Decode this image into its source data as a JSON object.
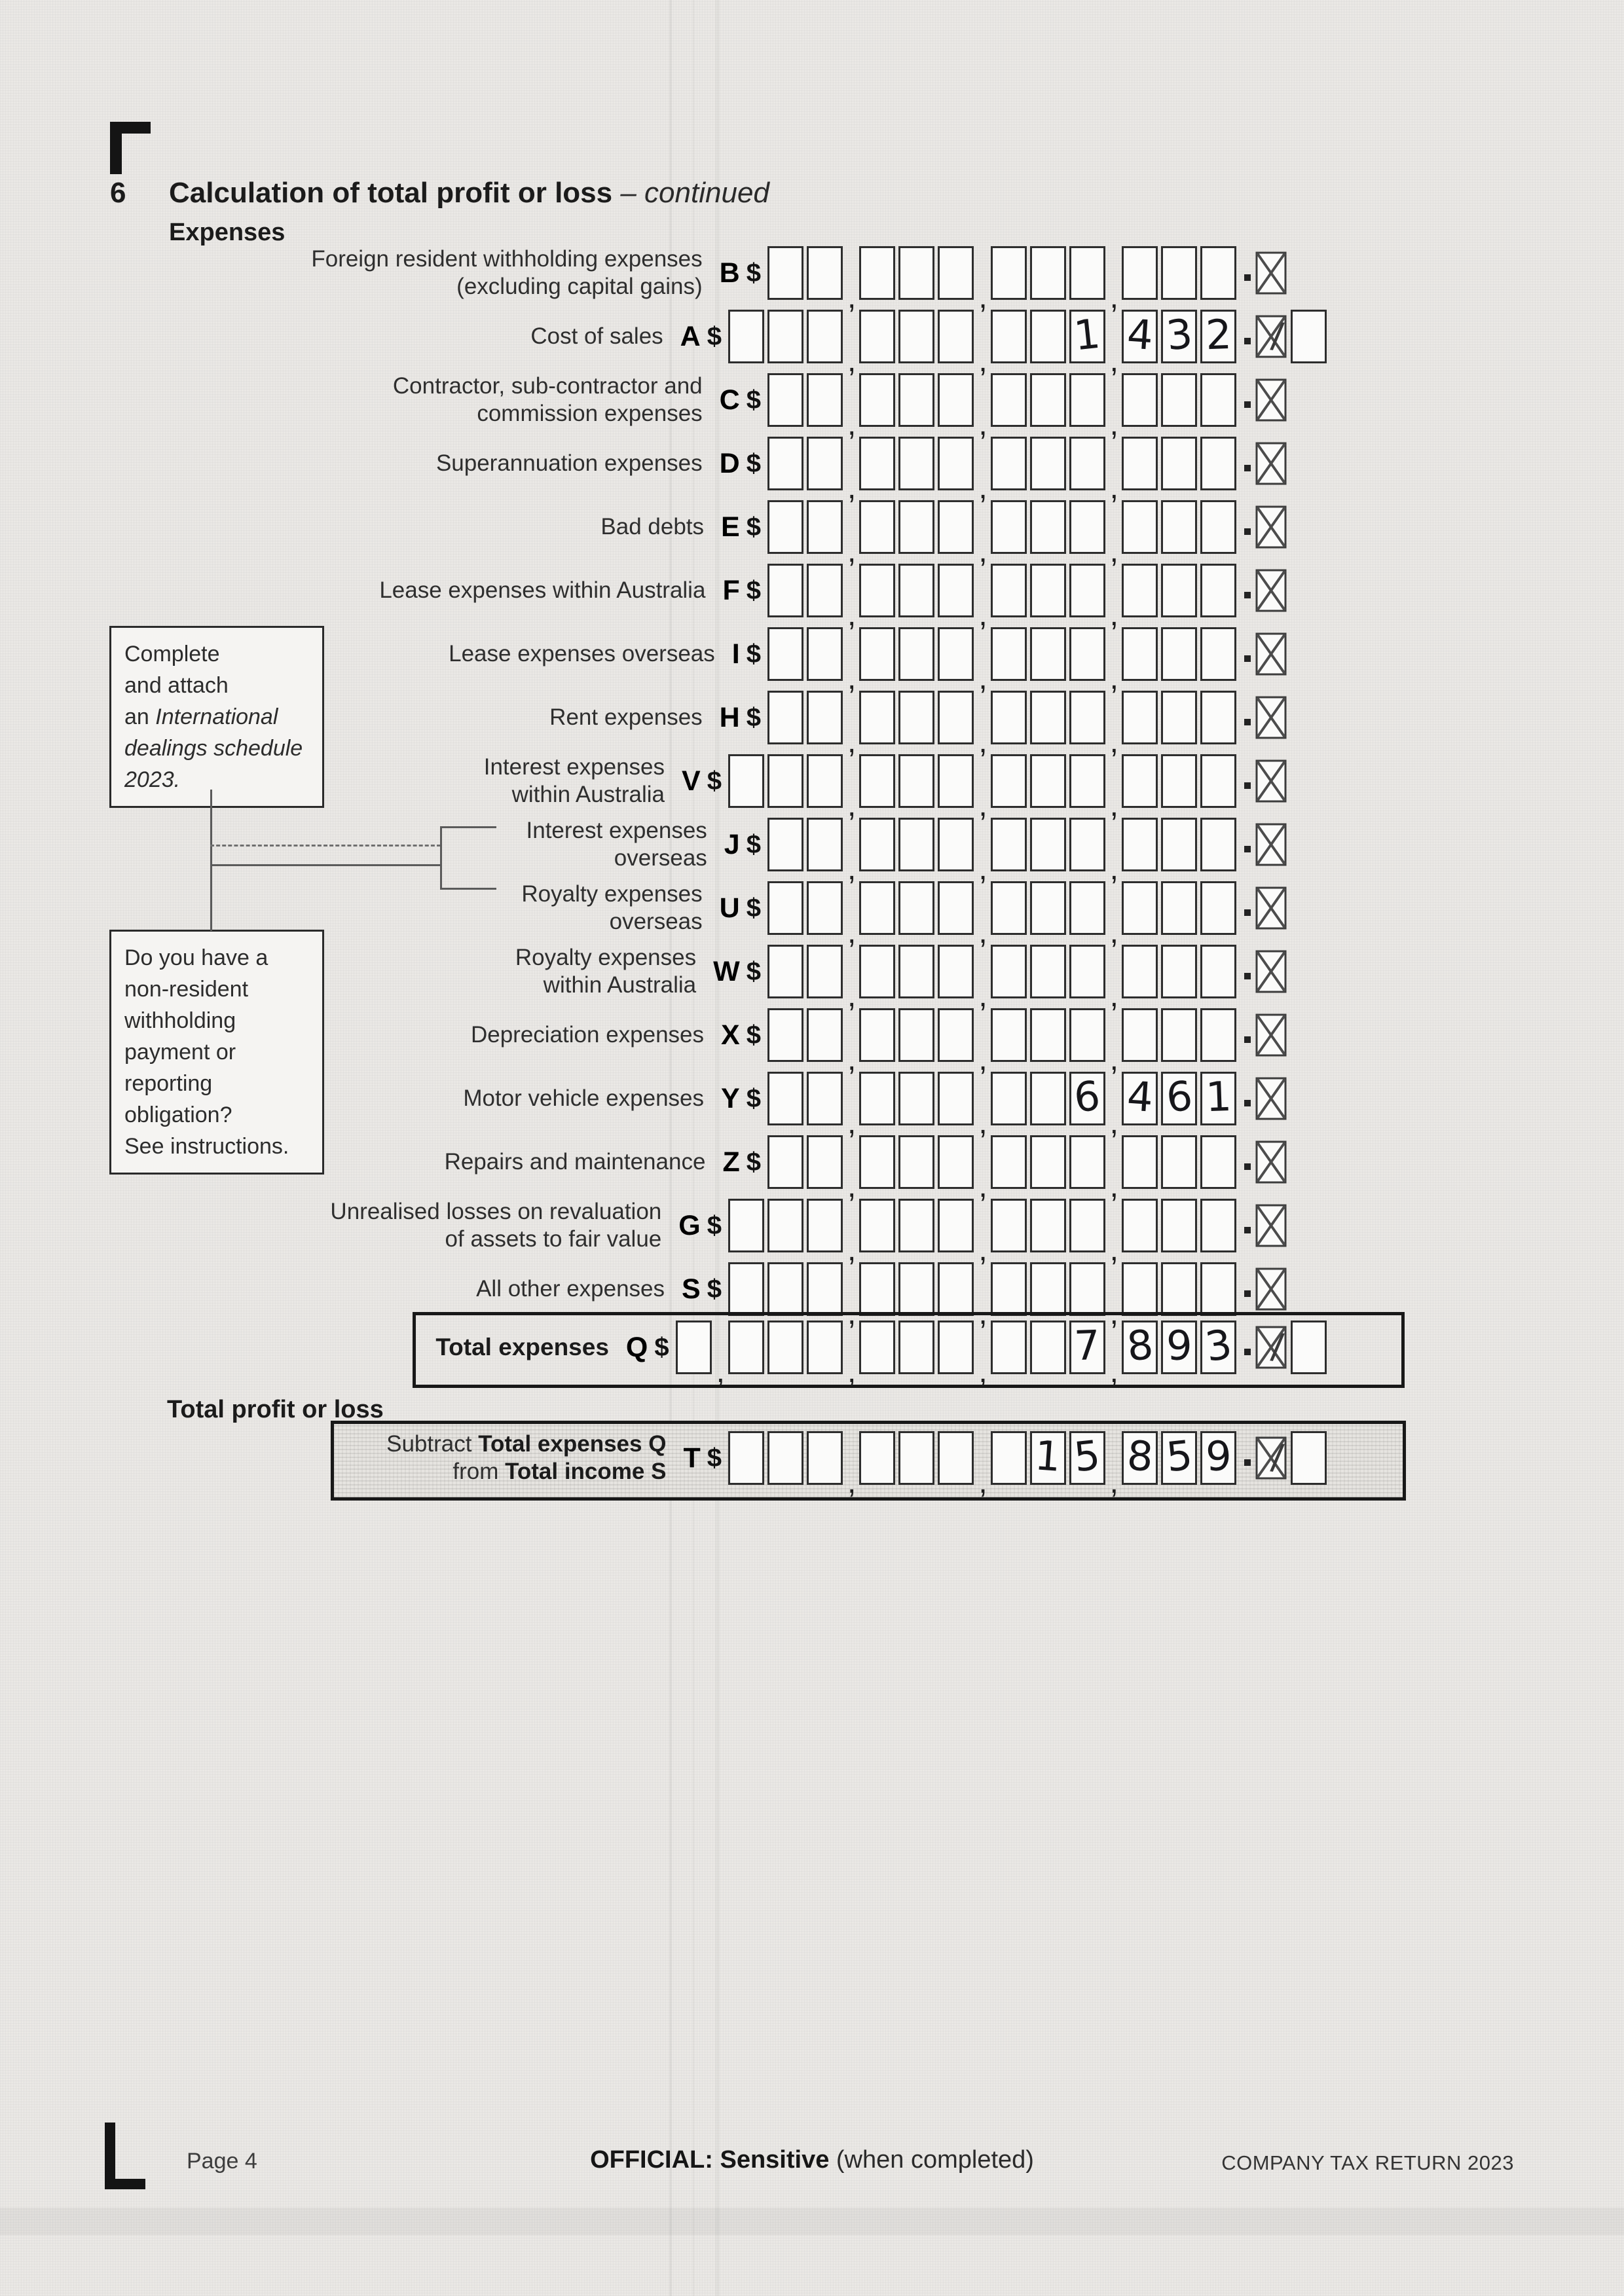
{
  "page": {
    "section_number": "6",
    "title": "Calculation of total profit or loss",
    "title_continued": "– continued",
    "expenses_heading": "Expenses",
    "total_profit_heading": "Total profit or loss"
  },
  "symbols": {
    "dollar": "$",
    "comma": ",",
    "loss_slash": "/"
  },
  "side_notes": {
    "international": {
      "line1": "Complete",
      "line2": "and attach",
      "line3_prefix": "an ",
      "line3_italic": "International",
      "line4_italic": "dealings schedule",
      "line5_italic": "2023."
    },
    "non_resident": {
      "lines": [
        "Do you have a",
        "non-resident",
        "withholding",
        "payment or",
        "reporting",
        "obligation?",
        "See instructions."
      ]
    }
  },
  "expense_rows": [
    {
      "code": "B",
      "label_lines": [
        "Foreign resident withholding expenses",
        "(excluding capital gains)"
      ],
      "groups": [
        [
          "",
          ""
        ],
        [
          "",
          "",
          ""
        ],
        [
          "",
          "",
          ""
        ],
        [
          "",
          "",
          ""
        ]
      ],
      "loss_value": null
    },
    {
      "code": "A",
      "label_lines": [
        "Cost of sales"
      ],
      "groups": [
        [
          "",
          "",
          ""
        ],
        [
          "",
          "",
          ""
        ],
        [
          "",
          "",
          "1"
        ],
        [
          "4",
          "3",
          "2"
        ]
      ],
      "loss_value": ""
    },
    {
      "code": "C",
      "label_lines": [
        "Contractor, sub-contractor and",
        "commission expenses"
      ],
      "groups": [
        [
          "",
          ""
        ],
        [
          "",
          "",
          ""
        ],
        [
          "",
          "",
          ""
        ],
        [
          "",
          "",
          ""
        ]
      ],
      "loss_value": null
    },
    {
      "code": "D",
      "label_lines": [
        "Superannuation expenses"
      ],
      "groups": [
        [
          "",
          ""
        ],
        [
          "",
          "",
          ""
        ],
        [
          "",
          "",
          ""
        ],
        [
          "",
          "",
          ""
        ]
      ],
      "loss_value": null
    },
    {
      "code": "E",
      "label_lines": [
        "Bad debts"
      ],
      "groups": [
        [
          "",
          ""
        ],
        [
          "",
          "",
          ""
        ],
        [
          "",
          "",
          ""
        ],
        [
          "",
          "",
          ""
        ]
      ],
      "loss_value": null
    },
    {
      "code": "F",
      "label_lines": [
        "Lease expenses within Australia"
      ],
      "groups": [
        [
          "",
          ""
        ],
        [
          "",
          "",
          ""
        ],
        [
          "",
          "",
          ""
        ],
        [
          "",
          "",
          ""
        ]
      ],
      "loss_value": null
    },
    {
      "code": "I",
      "label_lines": [
        "Lease expenses overseas"
      ],
      "groups": [
        [
          "",
          ""
        ],
        [
          "",
          "",
          ""
        ],
        [
          "",
          "",
          ""
        ],
        [
          "",
          "",
          ""
        ]
      ],
      "loss_value": null
    },
    {
      "code": "H",
      "label_lines": [
        "Rent expenses"
      ],
      "groups": [
        [
          "",
          ""
        ],
        [
          "",
          "",
          ""
        ],
        [
          "",
          "",
          ""
        ],
        [
          "",
          "",
          ""
        ]
      ],
      "loss_value": null
    },
    {
      "code": "V",
      "label_lines": [
        "Interest expenses",
        "within Australia"
      ],
      "groups": [
        [
          "",
          "",
          ""
        ],
        [
          "",
          "",
          ""
        ],
        [
          "",
          "",
          ""
        ],
        [
          "",
          "",
          ""
        ]
      ],
      "loss_value": null
    },
    {
      "code": "J",
      "label_lines": [
        "Interest expenses",
        "overseas"
      ],
      "groups": [
        [
          "",
          ""
        ],
        [
          "",
          "",
          ""
        ],
        [
          "",
          "",
          ""
        ],
        [
          "",
          "",
          ""
        ]
      ],
      "loss_value": null
    },
    {
      "code": "U",
      "label_lines": [
        "Royalty expenses",
        "overseas"
      ],
      "groups": [
        [
          "",
          ""
        ],
        [
          "",
          "",
          ""
        ],
        [
          "",
          "",
          ""
        ],
        [
          "",
          "",
          ""
        ]
      ],
      "loss_value": null
    },
    {
      "code": "W",
      "label_lines": [
        "Royalty expenses",
        "within Australia"
      ],
      "groups": [
        [
          "",
          ""
        ],
        [
          "",
          "",
          ""
        ],
        [
          "",
          "",
          ""
        ],
        [
          "",
          "",
          ""
        ]
      ],
      "loss_value": null
    },
    {
      "code": "X",
      "label_lines": [
        "Depreciation expenses"
      ],
      "groups": [
        [
          "",
          ""
        ],
        [
          "",
          "",
          ""
        ],
        [
          "",
          "",
          ""
        ],
        [
          "",
          "",
          ""
        ]
      ],
      "loss_value": null
    },
    {
      "code": "Y",
      "label_lines": [
        "Motor vehicle expenses"
      ],
      "groups": [
        [
          "",
          ""
        ],
        [
          "",
          "",
          ""
        ],
        [
          "",
          "",
          "6"
        ],
        [
          "4",
          "6",
          "1"
        ]
      ],
      "loss_value": null
    },
    {
      "code": "Z",
      "label_lines": [
        "Repairs and maintenance"
      ],
      "groups": [
        [
          "",
          ""
        ],
        [
          "",
          "",
          ""
        ],
        [
          "",
          "",
          ""
        ],
        [
          "",
          "",
          ""
        ]
      ],
      "loss_value": null
    },
    {
      "code": "G",
      "label_lines": [
        "Unrealised losses on revaluation",
        "of assets to fair value"
      ],
      "groups": [
        [
          "",
          "",
          ""
        ],
        [
          "",
          "",
          ""
        ],
        [
          "",
          "",
          ""
        ],
        [
          "",
          "",
          ""
        ]
      ],
      "loss_value": null
    },
    {
      "code": "S",
      "label_lines": [
        "All other expenses"
      ],
      "groups": [
        [
          "",
          "",
          ""
        ],
        [
          "",
          "",
          ""
        ],
        [
          "",
          "",
          ""
        ],
        [
          "",
          "",
          ""
        ]
      ],
      "loss_value": null
    }
  ],
  "totals": {
    "q_row": {
      "label": "Total expenses",
      "code": "Q",
      "groups": [
        [
          ""
        ],
        [
          "",
          "",
          ""
        ],
        [
          "",
          "",
          ""
        ],
        [
          "",
          "",
          "7"
        ],
        [
          "8",
          "9",
          "3"
        ]
      ],
      "loss_value": ""
    },
    "t_row": {
      "label_lines": [
        [
          {
            "text": "Subtract ",
            "bold": false
          },
          {
            "text": "Total expenses Q",
            "bold": true
          }
        ],
        [
          {
            "text": "from ",
            "bold": false
          },
          {
            "text": "Total income S",
            "bold": true
          }
        ]
      ],
      "code": "T",
      "groups": [
        [
          "",
          "",
          ""
        ],
        [
          "",
          "",
          ""
        ],
        [
          "",
          "1",
          "5"
        ],
        [
          "8",
          "5",
          "9"
        ]
      ],
      "loss_value": ""
    }
  },
  "footer": {
    "page_label": "Page 4",
    "official_bold": "OFFICIAL: Sensitive",
    "official_suffix": " (when completed)",
    "right_text": "COMPANY TAX RETURN 2023"
  }
}
